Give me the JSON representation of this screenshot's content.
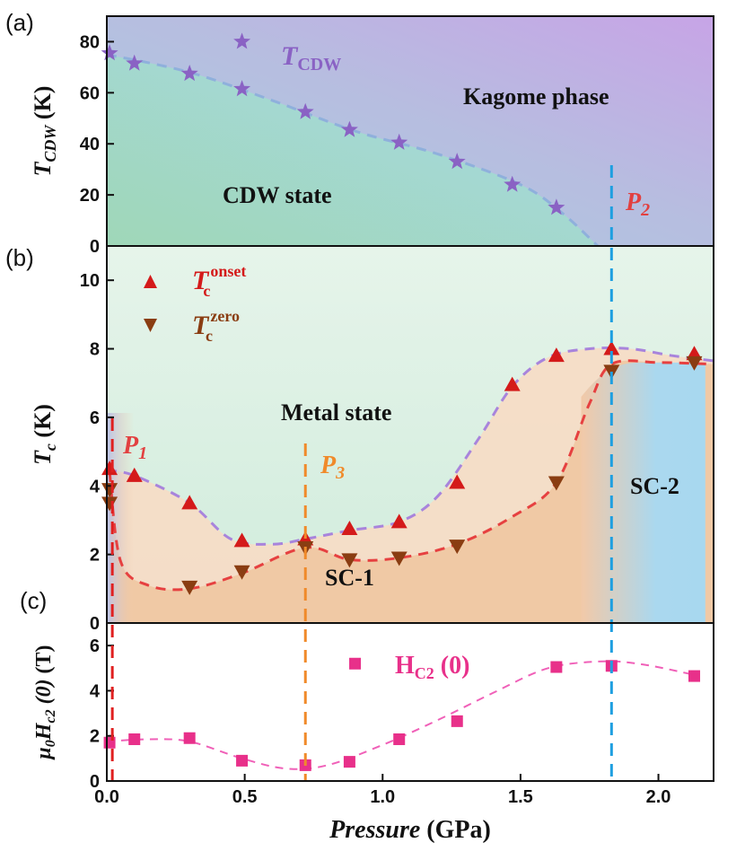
{
  "chart_data": [
    {
      "panel": "(a)",
      "type": "scatter",
      "ylabel_main": "T",
      "ylabel_sub": "CDW",
      "ylabel_unit": " (K)",
      "xlim": [
        0,
        2.2
      ],
      "ylim": [
        0,
        90
      ],
      "yticks": [
        0,
        20,
        40,
        60,
        80
      ],
      "series": [
        {
          "name": "T_CDW",
          "legend_main": "T",
          "legend_sub": "CDW",
          "color": "#8a62c4",
          "marker": "star",
          "x": [
            0.01,
            0.1,
            0.3,
            0.49,
            0.72,
            0.88,
            1.06,
            1.27,
            1.47,
            1.63
          ],
          "y": [
            75.5,
            71.5,
            67.5,
            61.5,
            52.5,
            45.5,
            40.5,
            33,
            24,
            15
          ]
        }
      ],
      "legend_marker_point": {
        "x": 0.49,
        "y": 80
      },
      "fit_line": {
        "color": "#8fb0dc",
        "x": [
          0,
          0.3,
          0.6,
          0.9,
          1.2,
          1.5,
          1.65,
          1.78
        ],
        "y": [
          75,
          68,
          57,
          45,
          36,
          24,
          13,
          0
        ]
      },
      "region_labels": {
        "cdw": "CDW state",
        "kagome": "Kagome phase"
      },
      "phase_line": {
        "label_main": "P",
        "label_sub": "2",
        "x": 1.83,
        "color": "#1e9fe0"
      }
    },
    {
      "panel": "(b)",
      "type": "scatter",
      "ylabel_main": "T",
      "ylabel_sub": "c",
      "ylabel_unit": " (K)",
      "xlim": [
        0,
        2.2
      ],
      "ylim": [
        0,
        11
      ],
      "yticks": [
        0,
        2,
        4,
        6,
        8,
        10
      ],
      "series": [
        {
          "name": "Tc onset",
          "legend_main": "T",
          "legend_sub": "c",
          "legend_sup": "onset",
          "color": "#d41a1a",
          "marker": "triangle-up",
          "x": [
            0.01,
            0.1,
            0.3,
            0.49,
            0.72,
            0.88,
            1.06,
            1.27,
            1.47,
            1.63,
            1.83,
            2.13
          ],
          "y": [
            4.5,
            4.3,
            3.5,
            2.4,
            2.45,
            2.75,
            2.95,
            4.1,
            6.95,
            7.8,
            8.0,
            7.85
          ]
        },
        {
          "name": "Tc zero",
          "legend_main": "T",
          "legend_sub": "c",
          "legend_sup": "zero",
          "color": "#8a3d12",
          "marker": "triangle-down",
          "x": [
            0.01,
            0.01,
            0.3,
            0.49,
            0.72,
            0.88,
            1.06,
            1.27,
            1.63,
            1.83,
            2.13
          ],
          "y": [
            3.9,
            3.5,
            1.05,
            1.5,
            2.2,
            1.85,
            1.9,
            2.25,
            4.1,
            7.35,
            7.6
          ]
        }
      ],
      "onset_fit": {
        "color": "#a884dc",
        "x": [
          0,
          0.1,
          0.3,
          0.45,
          0.6,
          0.72,
          0.88,
          1.06,
          1.2,
          1.35,
          1.47,
          1.6,
          1.75,
          1.9,
          2.05,
          2.2
        ],
        "y": [
          4.45,
          4.3,
          3.5,
          2.45,
          2.3,
          2.45,
          2.7,
          2.95,
          3.7,
          5.4,
          6.9,
          7.75,
          8.0,
          8.0,
          7.8,
          7.65
        ]
      },
      "zero_fit": {
        "color": "#e64040",
        "x": [
          0.01,
          0.05,
          0.15,
          0.3,
          0.49,
          0.72,
          0.88,
          1.06,
          1.27,
          1.47,
          1.63,
          1.75,
          1.83,
          2.0,
          2.2
        ],
        "y": [
          4.4,
          1.8,
          1.1,
          1.0,
          1.45,
          2.2,
          1.85,
          1.9,
          2.3,
          3.1,
          4.1,
          6.4,
          7.55,
          7.6,
          7.55
        ]
      },
      "region_labels": {
        "metal": "Metal state",
        "sc1": "SC-1",
        "sc2": "SC-2"
      },
      "phase_lines": [
        {
          "label_main": "P",
          "label_sub": "1",
          "x": 0.02,
          "color": "#e02020"
        },
        {
          "label_main": "P",
          "label_sub": "3",
          "x": 0.72,
          "color": "#f08a2a"
        }
      ]
    },
    {
      "panel": "(c)",
      "type": "scatter",
      "ylabel_prefix_main": "μ",
      "ylabel_prefix_sub": "0",
      "ylabel_main": "H",
      "ylabel_sub": "c2",
      "ylabel_arg": " (0)",
      "ylabel_unit": " (T)",
      "xlabel_main": "Pressure",
      "xlabel_unit": " (GPa)",
      "xlim": [
        0,
        2.2
      ],
      "ylim": [
        0,
        7
      ],
      "yticks": [
        0,
        2,
        4,
        6
      ],
      "xticks": [
        "0.0",
        "0.5",
        "1.0",
        "1.5",
        "2.0"
      ],
      "series": [
        {
          "name": "Hc2(0)",
          "legend_main": "H",
          "legend_sub": "C2",
          "legend_arg": " (0)",
          "color": "#e8308a",
          "marker": "square",
          "x": [
            0.01,
            0.1,
            0.3,
            0.49,
            0.72,
            0.88,
            1.06,
            1.27,
            1.63,
            1.83,
            2.13
          ],
          "y": [
            1.7,
            1.85,
            1.9,
            0.9,
            0.7,
            0.85,
            1.85,
            2.65,
            5.05,
            5.1,
            4.65
          ]
        }
      ],
      "legend_marker_point": {
        "x": 0.9,
        "y": 5.2
      },
      "fit_line": {
        "color": "#f060b8",
        "x": [
          0,
          0.15,
          0.3,
          0.49,
          0.65,
          0.8,
          1.0,
          1.2,
          1.4,
          1.6,
          1.8,
          1.95,
          2.13
        ],
        "y": [
          1.75,
          1.85,
          1.75,
          1.0,
          0.55,
          0.7,
          1.6,
          2.7,
          3.9,
          5.0,
          5.3,
          5.15,
          4.7
        ]
      }
    }
  ]
}
